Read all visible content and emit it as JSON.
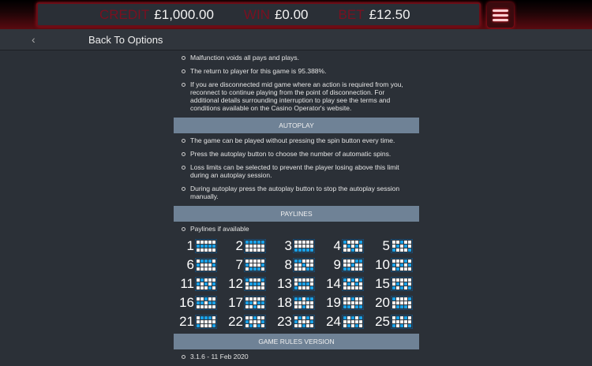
{
  "header": {
    "credit_label": "CREDIT",
    "credit": "£1,000.00",
    "win_label": "WIN",
    "win": "£0.00",
    "bet_label": "BET",
    "bet": "£12.50",
    "menu_icon": "hamburger-icon"
  },
  "nav": {
    "back_icon": "chevron-left-icon",
    "title": "Back To Options"
  },
  "intro": [
    "Malfunction voids all pays and plays.",
    "The return to player for this game is 95.388%.",
    "If you are disconnected mid game where an action is required from you, reconnect to continue playing from the point of disconnection. For additional details surrounding interruption to play see the terms and conditions available on the Casino Operator's website."
  ],
  "autoplay": {
    "title": "AUTOPLAY",
    "items": [
      "The game can be played without pressing the spin button every time.",
      "Press the autoplay button to choose the number of automatic spins.",
      "Loss limits can be selected to prevent the player losing above this limit during an autoplay session.",
      "During autoplay press the autoplay button to stop the autoplay session manually."
    ]
  },
  "paylines": {
    "title": "PAYLINES",
    "items": [
      "Paylines if available"
    ],
    "colors": {
      "on": "#1aa0e6",
      "off": "#ffffff"
    },
    "lines": [
      {
        "n": "1",
        "rows": [
          1,
          1,
          1,
          1,
          1
        ]
      },
      {
        "n": "2",
        "rows": [
          0,
          0,
          0,
          0,
          0
        ]
      },
      {
        "n": "3",
        "rows": [
          2,
          2,
          2,
          2,
          2
        ]
      },
      {
        "n": "4",
        "rows": [
          0,
          1,
          2,
          1,
          0
        ]
      },
      {
        "n": "5",
        "rows": [
          2,
          1,
          0,
          1,
          2
        ]
      },
      {
        "n": "6",
        "rows": [
          1,
          0,
          0,
          0,
          1
        ]
      },
      {
        "n": "7",
        "rows": [
          1,
          2,
          2,
          2,
          1
        ]
      },
      {
        "n": "8",
        "rows": [
          0,
          0,
          1,
          2,
          2
        ]
      },
      {
        "n": "9",
        "rows": [
          2,
          2,
          1,
          0,
          0
        ]
      },
      {
        "n": "10",
        "rows": [
          1,
          2,
          1,
          0,
          1
        ]
      },
      {
        "n": "11",
        "rows": [
          1,
          0,
          1,
          2,
          1
        ]
      },
      {
        "n": "12",
        "rows": [
          0,
          1,
          1,
          1,
          0
        ]
      },
      {
        "n": "13",
        "rows": [
          2,
          1,
          1,
          1,
          2
        ]
      },
      {
        "n": "14",
        "rows": [
          0,
          1,
          0,
          1,
          0
        ]
      },
      {
        "n": "15",
        "rows": [
          2,
          1,
          2,
          1,
          2
        ]
      },
      {
        "n": "16",
        "rows": [
          1,
          1,
          0,
          1,
          1
        ]
      },
      {
        "n": "17",
        "rows": [
          1,
          1,
          2,
          1,
          1
        ]
      },
      {
        "n": "18",
        "rows": [
          0,
          0,
          2,
          0,
          0
        ]
      },
      {
        "n": "19",
        "rows": [
          2,
          2,
          0,
          2,
          2
        ]
      },
      {
        "n": "20",
        "rows": [
          0,
          2,
          2,
          2,
          0
        ]
      },
      {
        "n": "21",
        "rows": [
          2,
          0,
          0,
          0,
          2
        ]
      },
      {
        "n": "22",
        "rows": [
          1,
          2,
          0,
          2,
          1
        ]
      },
      {
        "n": "23",
        "rows": [
          1,
          0,
          2,
          0,
          1
        ]
      },
      {
        "n": "24",
        "rows": [
          0,
          2,
          0,
          2,
          0
        ]
      },
      {
        "n": "25",
        "rows": [
          2,
          0,
          2,
          0,
          2
        ]
      }
    ]
  },
  "version": {
    "title": "GAME RULES VERSION",
    "items": [
      "3.1.6 - 11 Feb 2020"
    ]
  }
}
